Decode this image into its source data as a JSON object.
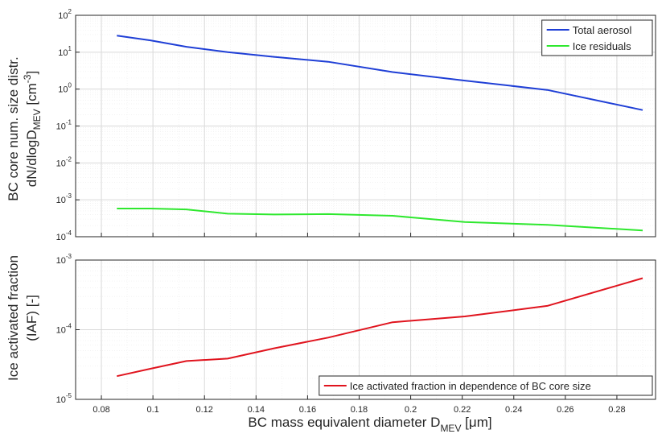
{
  "chart_data": [
    {
      "type": "line",
      "ylabel_line1": "BC core num. size distr.",
      "ylabel_line2_base": "dN/dlogD",
      "ylabel_line2_sub": "MEV",
      "ylabel_line2_unit_open": " [cm",
      "ylabel_line2_unit_sup": "-3",
      "ylabel_line2_unit_close": "]",
      "yscale": "log",
      "ylim": [
        0.0001,
        100
      ],
      "xlim": [
        0.07,
        0.295
      ],
      "x_ticks": [
        0.08,
        0.1,
        0.12,
        0.14,
        0.16,
        0.18,
        0.2,
        0.22,
        0.24,
        0.26,
        0.28
      ],
      "x_tick_labels_shown": false,
      "y_ticks": [
        {
          "base": "10",
          "exp": "-4",
          "value": 0.0001
        },
        {
          "base": "10",
          "exp": "-3",
          "value": 0.001
        },
        {
          "base": "10",
          "exp": "-2",
          "value": 0.01
        },
        {
          "base": "10",
          "exp": "-1",
          "value": 0.1
        },
        {
          "base": "10",
          "exp": "0",
          "value": 1
        },
        {
          "base": "10",
          "exp": "1",
          "value": 10
        },
        {
          "base": "10",
          "exp": "2",
          "value": 100
        }
      ],
      "grid": true,
      "legend_position": "top-right",
      "x": [
        0.086,
        0.099,
        0.113,
        0.129,
        0.147,
        0.168,
        0.193,
        0.221,
        0.253,
        0.29
      ],
      "series": [
        {
          "name": "Total aerosol",
          "color": "#1f3fd6",
          "values": [
            28,
            21,
            14,
            10,
            7.5,
            5.5,
            2.9,
            1.7,
            0.95,
            0.27
          ]
        },
        {
          "name": "Ice residuals",
          "color": "#2ee82e",
          "values": [
            0.00058,
            0.00058,
            0.00055,
            0.00042,
            0.0004,
            0.00041,
            0.00037,
            0.00025,
            0.00021,
            0.000148
          ]
        }
      ]
    },
    {
      "type": "line",
      "xlabel_base": "BC mass equivalent diameter D",
      "xlabel_sub": "MEV",
      "xlabel_unit": " [μm]",
      "ylabel_line1": "Ice activated fraction",
      "ylabel_line2": "(IAF) [-]",
      "yscale": "log",
      "ylim": [
        1e-05,
        0.001
      ],
      "xlim": [
        0.07,
        0.295
      ],
      "x_ticks": [
        0.08,
        0.1,
        0.12,
        0.14,
        0.16,
        0.18,
        0.2,
        0.22,
        0.24,
        0.26,
        0.28
      ],
      "x_tick_labels": [
        "0.08",
        "0.1",
        "0.12",
        "0.14",
        "0.16",
        "0.18",
        "0.2",
        "0.22",
        "0.24",
        "0.26",
        "0.28"
      ],
      "y_ticks": [
        {
          "base": "10",
          "exp": "-5",
          "value": 1e-05
        },
        {
          "base": "10",
          "exp": "-4",
          "value": 0.0001
        },
        {
          "base": "10",
          "exp": "-3",
          "value": 0.001
        }
      ],
      "grid": true,
      "legend_position": "bottom-right",
      "x": [
        0.086,
        0.099,
        0.113,
        0.129,
        0.147,
        0.168,
        0.193,
        0.221,
        0.253,
        0.29
      ],
      "series": [
        {
          "name": "Ice activated fraction in dependence of BC core size",
          "color": "#e0141e",
          "values": [
            2.15e-05,
            2.75e-05,
            3.55e-05,
            3.85e-05,
            5.4e-05,
            7.7e-05,
            0.000128,
            0.000155,
            0.00022,
            0.00055
          ]
        }
      ]
    }
  ]
}
